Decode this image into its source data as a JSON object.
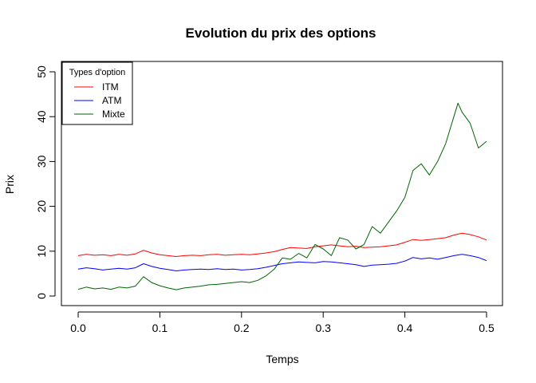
{
  "chart_data": {
    "type": "line",
    "title": "Evolution du prix des options",
    "xlabel": "Temps",
    "ylabel": "Prix",
    "xlim": [
      0,
      0.5
    ],
    "ylim": [
      0,
      50
    ],
    "xticks": [
      0.0,
      0.1,
      0.2,
      0.3,
      0.4,
      0.5
    ],
    "xtick_labels": [
      "0.0",
      "0.1",
      "0.2",
      "0.3",
      "0.4",
      "0.5"
    ],
    "yticks": [
      0,
      10,
      20,
      30,
      40,
      50
    ],
    "ytick_labels": [
      "0",
      "10",
      "20",
      "30",
      "40",
      "50"
    ],
    "grid": false,
    "legend": {
      "title": "Types d'option",
      "position": "top-left"
    },
    "series": [
      {
        "name": "ITM",
        "color": "#ff0000",
        "points": [
          [
            0,
            9.0
          ],
          [
            0.01,
            9.3
          ],
          [
            0.02,
            9.1
          ],
          [
            0.03,
            9.2
          ],
          [
            0.04,
            9.0
          ],
          [
            0.05,
            9.3
          ],
          [
            0.06,
            9.1
          ],
          [
            0.07,
            9.4
          ],
          [
            0.08,
            10.2
          ],
          [
            0.09,
            9.6
          ],
          [
            0.1,
            9.2
          ],
          [
            0.11,
            9.0
          ],
          [
            0.12,
            8.8
          ],
          [
            0.13,
            9.0
          ],
          [
            0.14,
            9.1
          ],
          [
            0.15,
            9.0
          ],
          [
            0.16,
            9.2
          ],
          [
            0.17,
            9.3
          ],
          [
            0.18,
            9.1
          ],
          [
            0.19,
            9.2
          ],
          [
            0.2,
            9.3
          ],
          [
            0.21,
            9.2
          ],
          [
            0.22,
            9.4
          ],
          [
            0.23,
            9.6
          ],
          [
            0.24,
            9.9
          ],
          [
            0.25,
            10.4
          ],
          [
            0.26,
            10.8
          ],
          [
            0.27,
            10.7
          ],
          [
            0.28,
            10.6
          ],
          [
            0.29,
            11.0
          ],
          [
            0.3,
            11.2
          ],
          [
            0.31,
            11.4
          ],
          [
            0.32,
            11.2
          ],
          [
            0.33,
            11.0
          ],
          [
            0.34,
            11.1
          ],
          [
            0.35,
            10.8
          ],
          [
            0.36,
            10.9
          ],
          [
            0.37,
            11.0
          ],
          [
            0.38,
            11.2
          ],
          [
            0.39,
            11.4
          ],
          [
            0.4,
            12.0
          ],
          [
            0.41,
            12.6
          ],
          [
            0.42,
            12.4
          ],
          [
            0.43,
            12.6
          ],
          [
            0.44,
            12.8
          ],
          [
            0.45,
            13.0
          ],
          [
            0.46,
            13.6
          ],
          [
            0.47,
            14.0
          ],
          [
            0.48,
            13.7
          ],
          [
            0.49,
            13.2
          ],
          [
            0.5,
            12.5
          ]
        ]
      },
      {
        "name": "ATM",
        "color": "#0000ff",
        "points": [
          [
            0,
            6.0
          ],
          [
            0.01,
            6.3
          ],
          [
            0.02,
            6.1
          ],
          [
            0.03,
            5.8
          ],
          [
            0.04,
            6.0
          ],
          [
            0.05,
            6.2
          ],
          [
            0.06,
            6.0
          ],
          [
            0.07,
            6.3
          ],
          [
            0.08,
            7.2
          ],
          [
            0.09,
            6.6
          ],
          [
            0.1,
            6.2
          ],
          [
            0.11,
            5.9
          ],
          [
            0.12,
            5.6
          ],
          [
            0.13,
            5.8
          ],
          [
            0.14,
            5.9
          ],
          [
            0.15,
            6.0
          ],
          [
            0.16,
            5.9
          ],
          [
            0.17,
            6.1
          ],
          [
            0.18,
            5.9
          ],
          [
            0.19,
            6.0
          ],
          [
            0.2,
            5.8
          ],
          [
            0.21,
            5.9
          ],
          [
            0.22,
            6.1
          ],
          [
            0.23,
            6.4
          ],
          [
            0.24,
            6.8
          ],
          [
            0.25,
            7.2
          ],
          [
            0.26,
            7.4
          ],
          [
            0.27,
            7.6
          ],
          [
            0.28,
            7.5
          ],
          [
            0.29,
            7.4
          ],
          [
            0.3,
            7.7
          ],
          [
            0.31,
            7.6
          ],
          [
            0.32,
            7.4
          ],
          [
            0.33,
            7.2
          ],
          [
            0.34,
            7.0
          ],
          [
            0.35,
            6.6
          ],
          [
            0.36,
            6.9
          ],
          [
            0.37,
            7.0
          ],
          [
            0.38,
            7.1
          ],
          [
            0.39,
            7.3
          ],
          [
            0.4,
            7.8
          ],
          [
            0.41,
            8.6
          ],
          [
            0.42,
            8.3
          ],
          [
            0.43,
            8.5
          ],
          [
            0.44,
            8.2
          ],
          [
            0.45,
            8.6
          ],
          [
            0.46,
            9.0
          ],
          [
            0.47,
            9.3
          ],
          [
            0.48,
            9.0
          ],
          [
            0.49,
            8.6
          ],
          [
            0.5,
            7.9
          ]
        ]
      },
      {
        "name": "Mixte",
        "color": "#006400",
        "points": [
          [
            0,
            1.5
          ],
          [
            0.01,
            2.0
          ],
          [
            0.02,
            1.6
          ],
          [
            0.03,
            1.8
          ],
          [
            0.04,
            1.5
          ],
          [
            0.05,
            2.0
          ],
          [
            0.06,
            1.8
          ],
          [
            0.07,
            2.2
          ],
          [
            0.08,
            4.3
          ],
          [
            0.09,
            3.0
          ],
          [
            0.1,
            2.3
          ],
          [
            0.11,
            1.8
          ],
          [
            0.12,
            1.4
          ],
          [
            0.13,
            1.8
          ],
          [
            0.14,
            2.0
          ],
          [
            0.15,
            2.2
          ],
          [
            0.16,
            2.5
          ],
          [
            0.17,
            2.6
          ],
          [
            0.18,
            2.8
          ],
          [
            0.19,
            3.0
          ],
          [
            0.2,
            3.2
          ],
          [
            0.21,
            3.0
          ],
          [
            0.22,
            3.5
          ],
          [
            0.23,
            4.5
          ],
          [
            0.24,
            6.0
          ],
          [
            0.25,
            8.5
          ],
          [
            0.26,
            8.2
          ],
          [
            0.27,
            9.5
          ],
          [
            0.28,
            8.5
          ],
          [
            0.29,
            11.5
          ],
          [
            0.3,
            10.5
          ],
          [
            0.31,
            9.0
          ],
          [
            0.32,
            13.0
          ],
          [
            0.33,
            12.5
          ],
          [
            0.34,
            10.5
          ],
          [
            0.35,
            11.5
          ],
          [
            0.36,
            15.5
          ],
          [
            0.37,
            14.0
          ],
          [
            0.38,
            16.5
          ],
          [
            0.39,
            19.0
          ],
          [
            0.4,
            22.0
          ],
          [
            0.41,
            28.0
          ],
          [
            0.42,
            29.5
          ],
          [
            0.43,
            27.0
          ],
          [
            0.44,
            30.0
          ],
          [
            0.45,
            34.0
          ],
          [
            0.46,
            40.0
          ],
          [
            0.465,
            43.0
          ],
          [
            0.47,
            41.0
          ],
          [
            0.48,
            38.5
          ],
          [
            0.49,
            33.0
          ],
          [
            0.5,
            34.5
          ]
        ]
      }
    ]
  }
}
